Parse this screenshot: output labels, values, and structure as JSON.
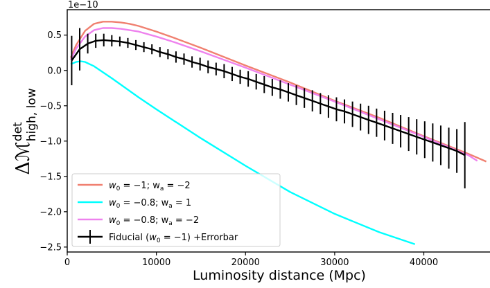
{
  "chart_data": {
    "type": "line",
    "offset_text": "1e−10",
    "xlabel": "Luminosity distance (Mpc)",
    "ylabel": {
      "prefix": "Δℳ",
      "superscript": "det",
      "subscript": "high, low"
    },
    "xlim": [
      0,
      47500
    ],
    "ylim": [
      -2.57,
      0.86
    ],
    "y_scale_factor": 1e-10,
    "xticks": [
      0,
      10000,
      20000,
      30000,
      40000
    ],
    "xtick_labels": [
      "0",
      "10000",
      "20000",
      "30000",
      "40000"
    ],
    "yticks": [
      0.5,
      0.0,
      -0.5,
      -1.0,
      -1.5,
      -2.0,
      -2.5
    ],
    "ytick_labels": [
      "0.5",
      "0.0",
      "−0.5",
      "−1.0",
      "−1.5",
      "−2.0",
      "−2.5"
    ],
    "grid": false,
    "legend_position": "lower-left",
    "series": [
      {
        "name": "w₀ = −1; wₐ = −2",
        "legend": {
          "p1": "w",
          "s1": "0",
          "p2": " = −1; w",
          "s2": "a",
          "p3": " = −2"
        },
        "color": "#f08070",
        "x": [
          400,
          1000,
          2000,
          3000,
          4000,
          5000,
          6000,
          7000,
          8000,
          10000,
          12000,
          15000,
          20000,
          25000,
          30000,
          35000,
          40000,
          45000,
          47000
        ],
        "y": [
          0.18,
          0.36,
          0.56,
          0.66,
          0.69,
          0.69,
          0.68,
          0.66,
          0.63,
          0.55,
          0.46,
          0.32,
          0.07,
          -0.17,
          -0.43,
          -0.67,
          -0.93,
          -1.18,
          -1.29
        ]
      },
      {
        "name": "w₀ = −0.8; wₐ = 1",
        "legend": {
          "p1": "w",
          "s1": "0",
          "p2": " = −0.8; w",
          "s2": "a",
          "p3": " = 1"
        },
        "color": "#00ffff",
        "x": [
          400,
          1000,
          1500,
          2000,
          3000,
          5000,
          8000,
          10000,
          15000,
          20000,
          25000,
          30000,
          35000,
          39000
        ],
        "y": [
          0.09,
          0.12,
          0.13,
          0.12,
          0.06,
          -0.11,
          -0.38,
          -0.55,
          -0.96,
          -1.35,
          -1.72,
          -2.03,
          -2.29,
          -2.46
        ]
      },
      {
        "name": "w₀ = −0.8; wₐ = −2",
        "legend": {
          "p1": "w",
          "s1": "0",
          "p2": " = −0.8; w",
          "s2": "a",
          "p3": " = −2"
        },
        "color": "#ee82ee",
        "x": [
          400,
          1000,
          2000,
          3000,
          4000,
          5000,
          6000,
          7000,
          8000,
          10000,
          12000,
          15000,
          20000,
          25000,
          30000,
          35000,
          40000,
          45000,
          46000
        ],
        "y": [
          0.15,
          0.31,
          0.48,
          0.57,
          0.6,
          0.6,
          0.59,
          0.57,
          0.55,
          0.48,
          0.4,
          0.27,
          0.04,
          -0.2,
          -0.44,
          -0.69,
          -0.94,
          -1.2,
          -1.28
        ]
      }
    ],
    "fiducial": {
      "name": "Fiducial (w₀ = −1) +Errorbar",
      "legend": {
        "p1": "Fiducial (",
        "s1": "",
        "p2": "",
        "s2": "",
        "p3": ""
      },
      "legend_text_prefix": "Fiducial (",
      "legend_w": "w",
      "legend_sub": "0",
      "legend_text_suffix": " = −1) +Errorbar",
      "color": "#000000",
      "x": [
        500,
        1400,
        2300,
        3200,
        4100,
        5000,
        5900,
        6800,
        7700,
        8600,
        9500,
        10400,
        11300,
        12200,
        13100,
        14000,
        14900,
        15800,
        16700,
        17600,
        18500,
        19400,
        20300,
        21200,
        22100,
        23000,
        23900,
        24800,
        25700,
        26600,
        27500,
        28400,
        29300,
        30200,
        31100,
        32000,
        32900,
        33800,
        34700,
        35600,
        36500,
        37400,
        38300,
        39200,
        40100,
        41000,
        41900,
        42800,
        43700,
        44600
      ],
      "y": [
        0.14,
        0.3,
        0.38,
        0.42,
        0.43,
        0.42,
        0.41,
        0.39,
        0.36,
        0.33,
        0.3,
        0.26,
        0.23,
        0.19,
        0.16,
        0.12,
        0.09,
        0.05,
        0.02,
        -0.01,
        -0.05,
        -0.09,
        -0.12,
        -0.16,
        -0.2,
        -0.24,
        -0.27,
        -0.31,
        -0.35,
        -0.39,
        -0.43,
        -0.47,
        -0.51,
        -0.55,
        -0.58,
        -0.62,
        -0.66,
        -0.7,
        -0.74,
        -0.78,
        -0.82,
        -0.86,
        -0.9,
        -0.94,
        -0.98,
        -1.02,
        -1.06,
        -1.1,
        -1.14,
        -1.2
      ],
      "err": [
        0.35,
        0.3,
        0.14,
        0.1,
        0.09,
        0.08,
        0.07,
        0.07,
        0.07,
        0.07,
        0.07,
        0.07,
        0.07,
        0.08,
        0.08,
        0.08,
        0.09,
        0.09,
        0.09,
        0.1,
        0.1,
        0.1,
        0.11,
        0.11,
        0.12,
        0.12,
        0.13,
        0.13,
        0.14,
        0.14,
        0.15,
        0.15,
        0.16,
        0.17,
        0.17,
        0.18,
        0.19,
        0.2,
        0.2,
        0.21,
        0.22,
        0.23,
        0.24,
        0.25,
        0.26,
        0.27,
        0.28,
        0.29,
        0.31,
        0.47
      ]
    }
  }
}
